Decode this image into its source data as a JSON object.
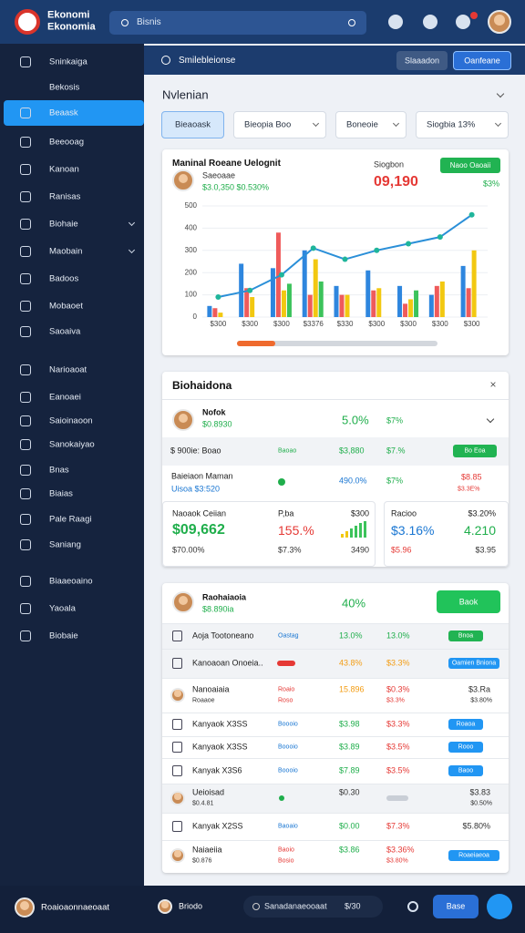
{
  "header": {
    "title1": "Ekonomi",
    "title2": "Ekonomia",
    "search": "Bisnis"
  },
  "sidebar": {
    "items": [
      "Sninkaiga",
      "Bekosis",
      "Beaask",
      "Beeooag",
      "Kanoan",
      "Ranisas",
      "Biohaie",
      "Maobain",
      "Badoos",
      "Mobaoet",
      "Saoaiva",
      "Narioaoat",
      "Eanoaei",
      "Saioinaoon",
      "Sanokaiyao",
      "Bnas",
      "Biaias",
      "Pale Raagi",
      "Saniang",
      "Biaaeoaino",
      "Yaoala",
      "Biobaie"
    ],
    "active": 2
  },
  "topbar": {
    "title": "Smilebleionse",
    "button1": "Slaaadon",
    "button2": "Oanfeane"
  },
  "section_title": "Nvlenian",
  "filters": [
    "Bieaoask",
    "Bieopia   Boo",
    "Boneoie",
    "Siogbia   13%"
  ],
  "chart_card": {
    "title": "Maninal  Roeane Uelognit",
    "subtitle": "Saeoaae",
    "meta": "$3.0,350  $0.530%",
    "stat_label": "Siogbon",
    "stat_value": "09,190",
    "button": "Naoo Oaoaii",
    "percent": "$3%",
    "chart": {
      "type": "bar",
      "categories": [
        "$300",
        "$300",
        "$300",
        "$3376",
        "$330",
        "$300",
        "$300",
        "$300",
        "$300"
      ],
      "ylim": [
        0,
        500
      ],
      "yticks": [
        0,
        100,
        200,
        300,
        400,
        500
      ],
      "grid": true,
      "series": [
        {
          "color": "#2e86de",
          "values": [
            50,
            240,
            220,
            300,
            140,
            210,
            140,
            100,
            230
          ]
        },
        {
          "color": "#ef5b5b",
          "values": [
            40,
            130,
            380,
            100,
            100,
            120,
            60,
            140,
            130
          ]
        },
        {
          "color": "#f2c811",
          "values": [
            20,
            90,
            120,
            260,
            100,
            130,
            80,
            160,
            300
          ]
        },
        {
          "color": "#3cc35b",
          "values": [
            null,
            null,
            150,
            160,
            null,
            null,
            120,
            null,
            null
          ]
        },
        {
          "type": "line",
          "color": "#2a8fd8",
          "values": [
            90,
            120,
            190,
            310,
            260,
            300,
            330,
            360,
            460
          ]
        }
      ]
    }
  },
  "card2": {
    "title": "Biohaidona",
    "person": {
      "name": "Nofok",
      "sub": "$0.8930",
      "v1": "5.0%",
      "v2": "$7%"
    },
    "row1": {
      "label": "$ 900ie: Boao",
      "tag": "Baoao",
      "v1": "$3,880",
      "v2": "$7.%",
      "button": "Bo Eoa"
    },
    "row2": {
      "label": "Baieiaon Maman",
      "sub": "Uisoa $3:520",
      "v1": "490.0%",
      "v2": "$7%",
      "v3": "$8.85",
      "v3sub": "$3.3E%"
    },
    "box1": {
      "label": "Naoaok Ceiian",
      "value": "$09,662",
      "sub": "$70.00%",
      "label2": "P,ba",
      "value2": "$300",
      "pct": "155.%",
      "sub2": "$7.3%",
      "sub3": "3490"
    },
    "box2": {
      "label": "Racioo",
      "value": "$3.20%",
      "big1": "$3.16%",
      "big2": "4.210",
      "sub1": "$5.96",
      "sub2": "$3.95"
    }
  },
  "card3": {
    "person": {
      "name": "Raohaiaoia",
      "sub": "$8.890ia",
      "v1": "40%",
      "button": "Baok"
    },
    "rows": [
      {
        "label": "Aoja Tootoneano",
        "c1": "Oastag",
        "c2": "13.0%",
        "c3": "13.0%",
        "btn": "Bnoa"
      },
      {
        "label": "Kanoaoan Onoeia..",
        "c2": "43.8%",
        "c3": "$3.3%",
        "btn": "Oamien Bniona"
      },
      {
        "label": "Nanoaiaia",
        "sub": "Roaaoe",
        "c1": "Roaio",
        "c1sub": "Roso",
        "c2": "15.896",
        "c3": "$0.3%",
        "c3sub": "$3.3%",
        "right": "$3.Ra",
        "rightsub": "$3.80%"
      },
      {
        "label": "Kanyaok X3SS",
        "c1": "Boooio",
        "c2": "$3.98",
        "c3": "$3.3%",
        "btn": "Roaoa"
      },
      {
        "label": "Kanyaok X3SS",
        "c1": "Boooio",
        "c2": "$3.89",
        "c3": "$3.5%",
        "btn": "Rooo"
      },
      {
        "label": "Kanyak X3S6",
        "c1": "Boooio",
        "c2": "$7.89",
        "c3": "$3.5%",
        "btn": "Baoo"
      },
      {
        "label": "Ueioisad",
        "sub": "$0.4.81",
        "c2": "$0.30",
        "right": "$3.83",
        "rightsub": "$0.50%"
      },
      {
        "label": "Kanyak X2SS",
        "c1": "Baoaio",
        "c2": "$0.00",
        "c3": "$7.3%",
        "right": "$5.80%"
      },
      {
        "label": "Naiaeiia",
        "sub": "$0.876",
        "c1": "Baoio",
        "c1sub": "Bosio",
        "c2": "$3.86",
        "c3": "$3.36%",
        "c3sub": "$3.80%",
        "btn": "Roaeiaeoa"
      }
    ]
  },
  "footer": {
    "user": "Roaioaonnaeoaat",
    "user2": "Briodo",
    "search": "Sanadanaeooaat",
    "search_meta": "$/30",
    "button": "Base"
  }
}
